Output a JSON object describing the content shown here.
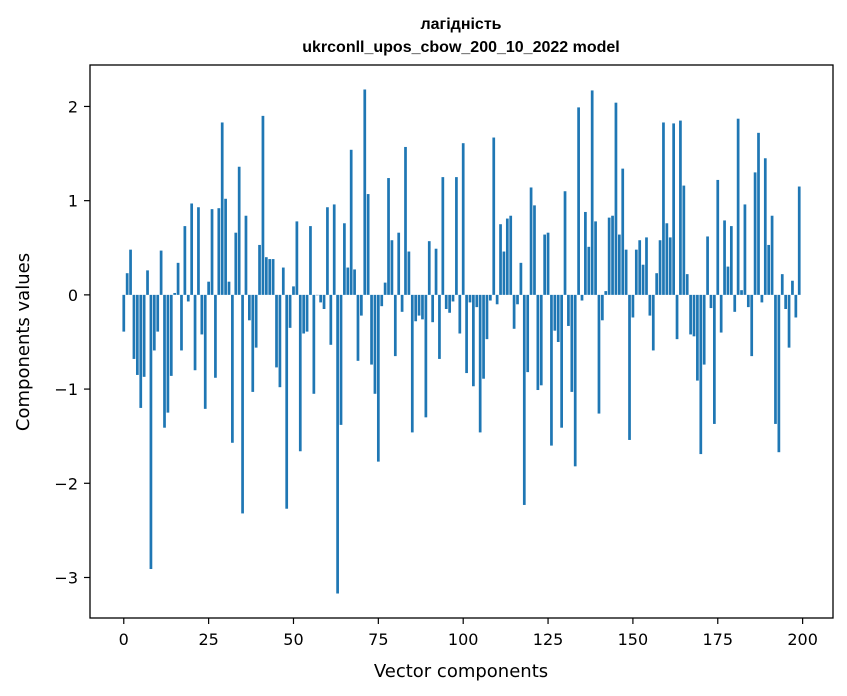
{
  "chart_data": {
    "type": "bar",
    "title": "лагідність",
    "subtitle": "ukrconll_upos_cbow_200_10_2022 model",
    "xlabel": "Vector components",
    "ylabel": "Components values",
    "xlim": [
      -9.95,
      208.95
    ],
    "ylim": [
      -3.43,
      2.44
    ],
    "xticks": [
      0,
      25,
      50,
      75,
      100,
      125,
      150,
      175,
      200
    ],
    "yticks": [
      -3,
      -2,
      -1,
      0,
      1,
      2
    ],
    "bar_color": "#1f77b4",
    "grid": false,
    "legend": "none",
    "categories": [
      0,
      1,
      2,
      3,
      4,
      5,
      6,
      7,
      8,
      9,
      10,
      11,
      12,
      13,
      14,
      15,
      16,
      17,
      18,
      19,
      20,
      21,
      22,
      23,
      24,
      25,
      26,
      27,
      28,
      29,
      30,
      31,
      32,
      33,
      34,
      35,
      36,
      37,
      38,
      39,
      40,
      41,
      42,
      43,
      44,
      45,
      46,
      47,
      48,
      49,
      50,
      51,
      52,
      53,
      54,
      55,
      56,
      57,
      58,
      59,
      60,
      61,
      62,
      63,
      64,
      65,
      66,
      67,
      68,
      69,
      70,
      71,
      72,
      73,
      74,
      75,
      76,
      77,
      78,
      79,
      80,
      81,
      82,
      83,
      84,
      85,
      86,
      87,
      88,
      89,
      90,
      91,
      92,
      93,
      94,
      95,
      96,
      97,
      98,
      99,
      100,
      101,
      102,
      103,
      104,
      105,
      106,
      107,
      108,
      109,
      110,
      111,
      112,
      113,
      114,
      115,
      116,
      117,
      118,
      119,
      120,
      121,
      122,
      123,
      124,
      125,
      126,
      127,
      128,
      129,
      130,
      131,
      132,
      133,
      134,
      135,
      136,
      137,
      138,
      139,
      140,
      141,
      142,
      143,
      144,
      145,
      146,
      147,
      148,
      149,
      150,
      151,
      152,
      153,
      154,
      155,
      156,
      157,
      158,
      159,
      160,
      161,
      162,
      163,
      164,
      165,
      166,
      167,
      168,
      169,
      170,
      171,
      172,
      173,
      174,
      175,
      176,
      177,
      178,
      179,
      180,
      181,
      182,
      183,
      184,
      185,
      186,
      187,
      188,
      189,
      190,
      191,
      192,
      193,
      194,
      195,
      196,
      197,
      198,
      199
    ],
    "values": [
      -0.39,
      0.23,
      0.48,
      -0.68,
      -0.85,
      -1.2,
      -0.87,
      0.26,
      -2.91,
      -0.59,
      -0.39,
      0.47,
      -1.41,
      -1.25,
      -0.86,
      0.02,
      0.34,
      -0.59,
      0.73,
      -0.07,
      0.97,
      -0.8,
      0.93,
      -0.42,
      -1.21,
      0.14,
      0.91,
      -0.88,
      0.92,
      1.83,
      1.02,
      0.14,
      -1.57,
      0.66,
      1.36,
      -2.32,
      0.84,
      -0.27,
      -1.03,
      -0.56,
      0.53,
      1.9,
      0.4,
      0.38,
      0.38,
      -0.77,
      -0.98,
      0.29,
      -2.27,
      -0.35,
      0.09,
      0.78,
      -1.66,
      -0.41,
      -0.39,
      0.73,
      -1.05,
      0.0,
      -0.08,
      -0.15,
      0.93,
      -0.53,
      0.96,
      -3.17,
      -1.38,
      0.76,
      0.29,
      1.54,
      0.27,
      -0.7,
      -0.22,
      2.18,
      1.07,
      -0.74,
      -1.05,
      -1.77,
      -0.12,
      0.13,
      1.24,
      0.58,
      -0.65,
      0.66,
      -0.18,
      1.57,
      0.46,
      -1.46,
      -0.28,
      -0.22,
      -0.26,
      -1.3,
      0.57,
      -0.29,
      0.49,
      -0.68,
      1.25,
      -0.15,
      -0.19,
      -0.07,
      1.25,
      -0.41,
      1.61,
      -0.83,
      -0.08,
      -0.97,
      -0.13,
      -1.46,
      -0.89,
      -0.47,
      -0.06,
      1.67,
      -0.1,
      0.75,
      0.46,
      0.81,
      0.84,
      -0.36,
      -0.1,
      0.34,
      -2.23,
      -0.82,
      1.14,
      0.95,
      -1.01,
      -0.96,
      0.64,
      0.66,
      -1.6,
      -0.38,
      -0.5,
      -1.41,
      1.1,
      -0.33,
      -1.03,
      -1.82,
      1.99,
      -0.06,
      0.88,
      0.51,
      2.17,
      0.78,
      -1.26,
      -0.27,
      0.04,
      0.82,
      0.84,
      2.04,
      0.64,
      1.34,
      0.48,
      -1.54,
      -0.24,
      0.48,
      0.58,
      0.32,
      0.61,
      -0.22,
      -0.59,
      0.23,
      0.58,
      1.83,
      0.76,
      0.61,
      1.82,
      -0.47,
      1.85,
      1.16,
      0.22,
      -0.42,
      -0.44,
      -0.91,
      -1.69,
      -0.74,
      0.62,
      -0.14,
      -1.37,
      1.22,
      -0.4,
      0.79,
      0.3,
      0.73,
      -0.18,
      1.87,
      0.05,
      0.96,
      -0.13,
      -0.65,
      1.3,
      1.72,
      -0.08,
      1.45,
      0.53,
      0.84,
      -1.37,
      -1.67,
      0.22,
      -0.15,
      -0.56,
      0.15,
      -0.24,
      1.15
    ]
  }
}
